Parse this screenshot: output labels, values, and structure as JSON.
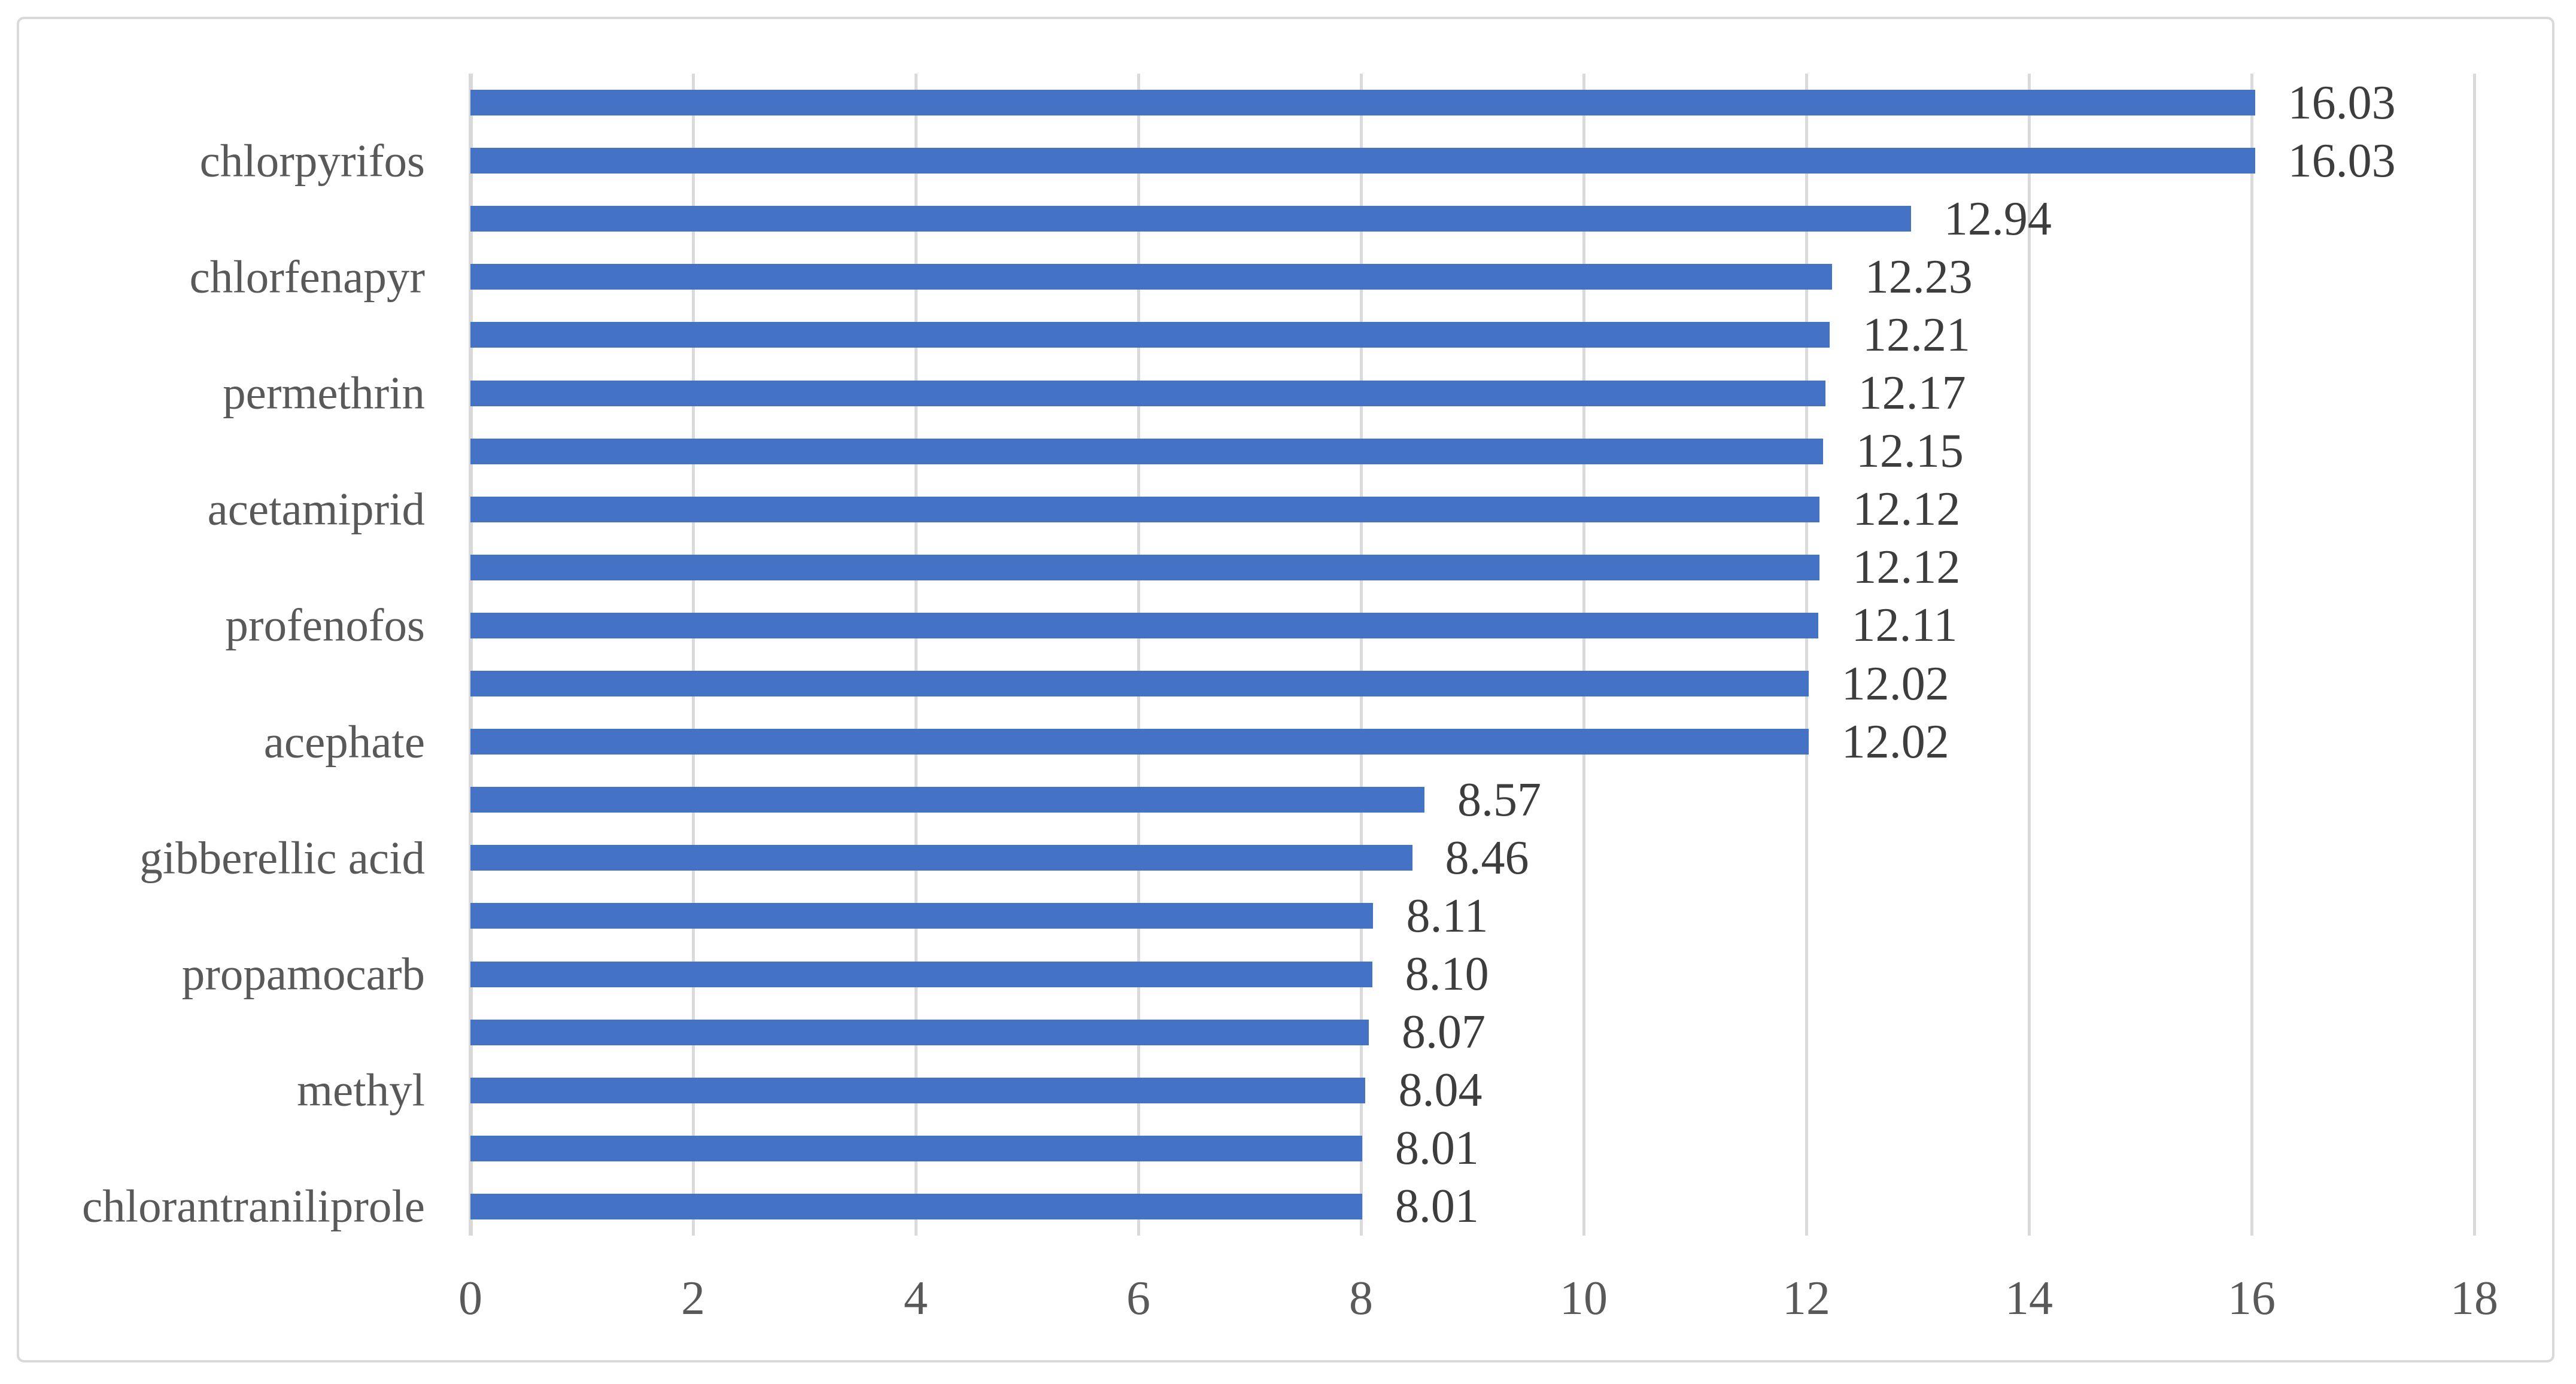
{
  "chart_data": {
    "type": "bar",
    "orientation": "horizontal",
    "title": "",
    "xlabel": "",
    "ylabel": "",
    "categories": [
      "chlorpyrifos",
      "chlorfenapyr",
      "permethrin",
      "acetamiprid",
      "profenofos",
      "acephate",
      "gibberellic acid",
      "propamocarb",
      "methyl",
      "chlorantraniliprole"
    ],
    "category_label_shown_every_nth_bar": 2,
    "values": [
      16.03,
      16.03,
      12.94,
      12.23,
      12.21,
      12.17,
      12.15,
      12.12,
      12.12,
      12.11,
      12.02,
      12.02,
      8.57,
      8.46,
      8.11,
      8.1,
      8.07,
      8.04,
      8.01,
      8.01
    ],
    "data_labels": [
      "16.03",
      "16.03",
      "12.94",
      "12.23",
      "12.21",
      "12.17",
      "12.15",
      "12.12",
      "12.12",
      "12.11",
      "12.02",
      "12.02",
      "8.57",
      "8.46",
      "8.11",
      "8.10",
      "8.07",
      "8.04",
      "8.01",
      "8.01"
    ],
    "x_ticks": [
      "0",
      "2",
      "4",
      "6",
      "8",
      "10",
      "12",
      "14",
      "16",
      "18"
    ],
    "xlim": [
      0,
      18
    ],
    "grid": true,
    "legend": false,
    "colors": {
      "bar": "#4472C4",
      "gridline": "#DADADA",
      "axis_line": "#D9D9D9",
      "border": "#D9D9D9",
      "category_label": "#595959",
      "tick_label": "#595959",
      "data_label": "#3D3D3D"
    }
  }
}
